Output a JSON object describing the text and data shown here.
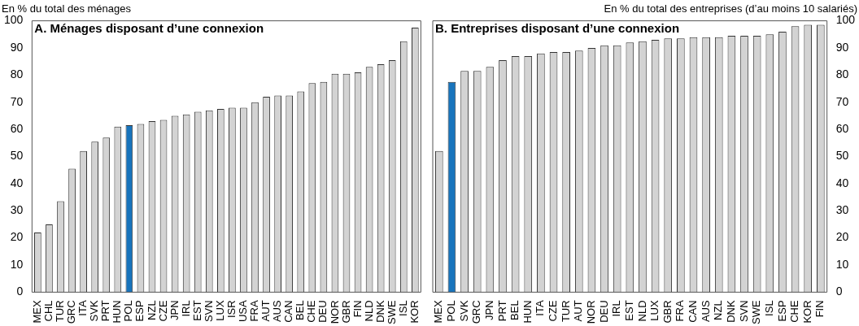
{
  "chart_data": [
    {
      "type": "bar",
      "title": "A. Ménages disposant d’une connexion",
      "ylabel": "En % du total des ménages",
      "categories": [
        "MEX",
        "CHL",
        "TUR",
        "GRC",
        "ITA",
        "SVK",
        "PRT",
        "HUN",
        "POL",
        "ESP",
        "NZL",
        "CZE",
        "JPN",
        "IRL",
        "EST",
        "SVN",
        "LUX",
        "ISR",
        "USA",
        "FRA",
        "AUT",
        "AUS",
        "CAN",
        "BEL",
        "CHE",
        "DEU",
        "NOR",
        "GBR",
        "FIN",
        "NLD",
        "DNK",
        "SWE",
        "ISL",
        "KOR"
      ],
      "values": [
        22,
        25,
        33.5,
        45.5,
        52,
        55.5,
        57,
        61,
        61.5,
        62,
        63,
        63.5,
        65,
        65.5,
        66.5,
        67,
        67.5,
        68,
        68,
        70,
        72,
        72.5,
        72.5,
        74,
        77,
        77.5,
        80.5,
        80.5,
        81,
        83,
        84,
        85.5,
        92.5,
        97.5
      ],
      "colors": [
        "#d3d3d3",
        "#d3d3d3",
        "#d3d3d3",
        "#d3d3d3",
        "#d3d3d3",
        "#d3d3d3",
        "#d3d3d3",
        "#d3d3d3",
        "#1874bc",
        "#d3d3d3",
        "#d3d3d3",
        "#d3d3d3",
        "#d3d3d3",
        "#d3d3d3",
        "#d3d3d3",
        "#d3d3d3",
        "#d3d3d3",
        "#d3d3d3",
        "#d3d3d3",
        "#d3d3d3",
        "#d3d3d3",
        "#d3d3d3",
        "#d3d3d3",
        "#d3d3d3",
        "#d3d3d3",
        "#d3d3d3",
        "#d3d3d3",
        "#d3d3d3",
        "#d3d3d3",
        "#d3d3d3",
        "#d3d3d3",
        "#d3d3d3",
        "#d3d3d3",
        "#d3d3d3"
      ],
      "ylim": [
        0,
        100
      ],
      "yticks": [
        0,
        10,
        20,
        30,
        40,
        50,
        60,
        70,
        80,
        90,
        100
      ]
    },
    {
      "type": "bar",
      "title": "B. Entreprises disposant d’une connexion",
      "ylabel": "En % du total des entreprises (d’au moins 10 salariés)",
      "categories": [
        "MEX",
        "POL",
        "SVK",
        "GRC",
        "JPN",
        "PRT",
        "BEL",
        "HUN",
        "ITA",
        "CZE",
        "TUR",
        "AUT",
        "NOR",
        "DEU",
        "IRL",
        "EST",
        "NLD",
        "LUX",
        "GBR",
        "FRA",
        "CAN",
        "AUS",
        "NZL",
        "DNK",
        "SVN",
        "SWE",
        "ISL",
        "ESP",
        "CHE",
        "KOR",
        "FIN"
      ],
      "values": [
        52,
        77.5,
        81.5,
        81.5,
        83,
        85.5,
        87,
        87,
        88,
        88.5,
        88.5,
        89,
        90,
        91,
        91,
        92,
        92.5,
        93,
        93.5,
        93.5,
        94,
        94,
        94,
        94.5,
        94.5,
        94.5,
        95,
        96,
        98,
        98.5,
        98.5
      ],
      "colors": [
        "#d3d3d3",
        "#1874bc",
        "#d3d3d3",
        "#d3d3d3",
        "#d3d3d3",
        "#d3d3d3",
        "#d3d3d3",
        "#d3d3d3",
        "#d3d3d3",
        "#d3d3d3",
        "#d3d3d3",
        "#d3d3d3",
        "#d3d3d3",
        "#d3d3d3",
        "#d3d3d3",
        "#d3d3d3",
        "#d3d3d3",
        "#d3d3d3",
        "#d3d3d3",
        "#d3d3d3",
        "#d3d3d3",
        "#d3d3d3",
        "#d3d3d3",
        "#d3d3d3",
        "#d3d3d3",
        "#d3d3d3",
        "#d3d3d3",
        "#d3d3d3",
        "#d3d3d3",
        "#d3d3d3",
        "#d3d3d3"
      ],
      "ylim": [
        0,
        100
      ],
      "yticks": [
        0,
        10,
        20,
        30,
        40,
        50,
        60,
        70,
        80,
        90,
        100
      ]
    }
  ]
}
